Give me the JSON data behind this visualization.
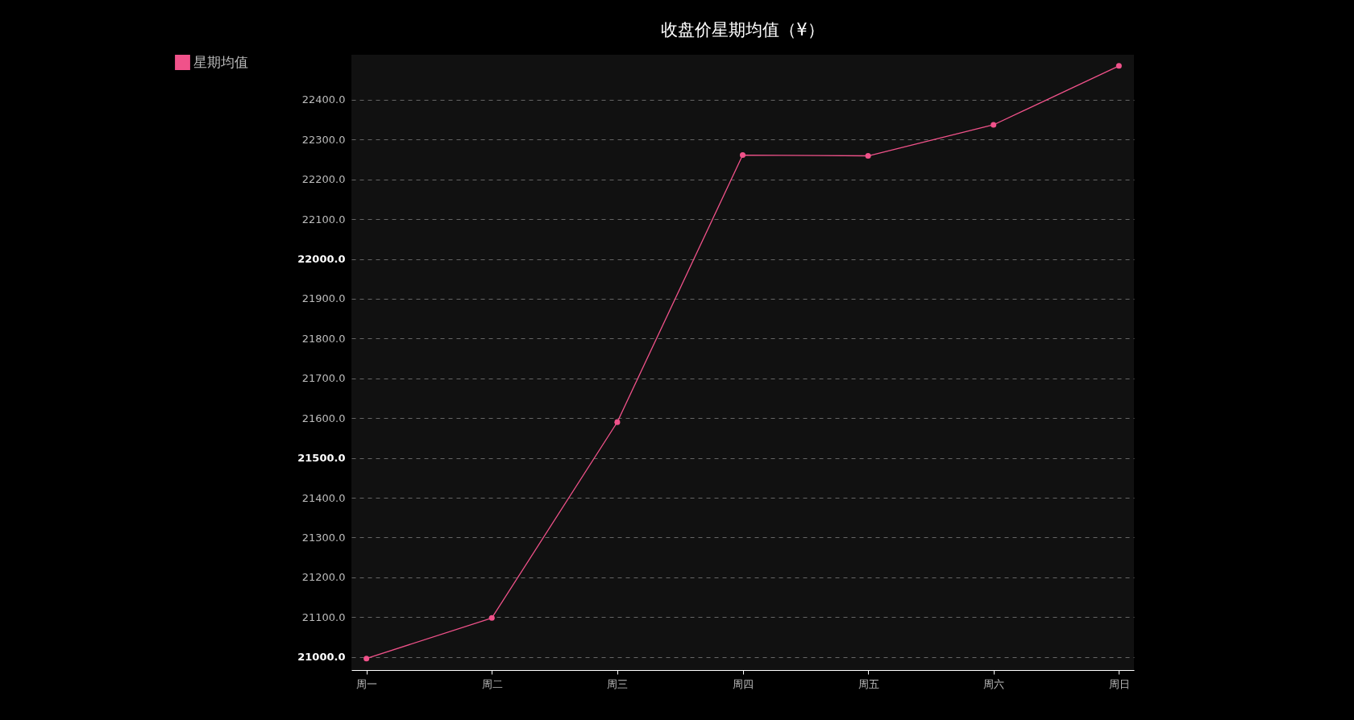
{
  "chart_data": {
    "type": "line",
    "title": "收盘价星期均值（¥）",
    "categories": [
      "周一",
      "周二",
      "周三",
      "周四",
      "周五",
      "周六",
      "周日"
    ],
    "series": [
      {
        "name": "星期均值",
        "color": "#f0528a",
        "values": [
          20996,
          21098,
          21590,
          22261,
          22259,
          22337,
          22485
        ]
      }
    ],
    "ylim": [
      20967,
      22513
    ],
    "yticks": [
      {
        "value": 21000,
        "label": "21000.0"
      },
      {
        "value": 21100,
        "label": "21100.0"
      },
      {
        "value": 21200,
        "label": "21200.0"
      },
      {
        "value": 21300,
        "label": "21300.0"
      },
      {
        "value": 21400,
        "label": "21400.0"
      },
      {
        "value": 21500,
        "label": "21500.0"
      },
      {
        "value": 21600,
        "label": "21600.0"
      },
      {
        "value": 21700,
        "label": "21700.0"
      },
      {
        "value": 21800,
        "label": "21800.0"
      },
      {
        "value": 21900,
        "label": "21900.0"
      },
      {
        "value": 22000,
        "label": "22000.0"
      },
      {
        "value": 22100,
        "label": "22100.0"
      },
      {
        "value": 22200,
        "label": "22200.0"
      },
      {
        "value": 22300,
        "label": "22300.0"
      },
      {
        "value": 22400,
        "label": "22400.0"
      }
    ],
    "grid": "y",
    "legend": "top left",
    "marker": "circle",
    "line_style": "solid"
  }
}
